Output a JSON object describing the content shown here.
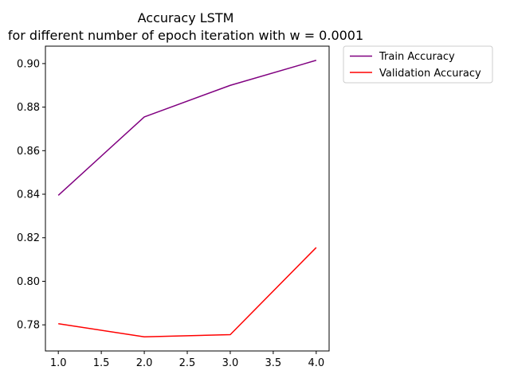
{
  "chart_data": {
    "type": "line",
    "title_line1": "Accuracy LSTM",
    "title_line2": "for different number of epoch iteration with w = 0.0001",
    "xlabel": "",
    "ylabel": "",
    "x": [
      1.0,
      2.0,
      3.0,
      4.0
    ],
    "xlim": [
      0.85,
      4.15
    ],
    "ylim": [
      0.768,
      0.908
    ],
    "xticks": [
      1.0,
      1.5,
      2.0,
      2.5,
      3.0,
      3.5,
      4.0
    ],
    "xtick_labels": [
      "1.0",
      "1.5",
      "2.0",
      "2.5",
      "3.0",
      "3.5",
      "4.0"
    ],
    "yticks": [
      0.78,
      0.8,
      0.82,
      0.84,
      0.86,
      0.88,
      0.9
    ],
    "ytick_labels": [
      "0.78",
      "0.80",
      "0.82",
      "0.84",
      "0.86",
      "0.88",
      "0.90"
    ],
    "grid": false,
    "legend_position": "outside-upper-right",
    "series": [
      {
        "name": "Train Accuracy",
        "color": "#800080",
        "values": [
          0.8395,
          0.8755,
          0.89,
          0.9015
        ]
      },
      {
        "name": "Validation Accuracy",
        "color": "#ff0000",
        "values": [
          0.7805,
          0.7745,
          0.7755,
          0.8155
        ]
      }
    ]
  }
}
